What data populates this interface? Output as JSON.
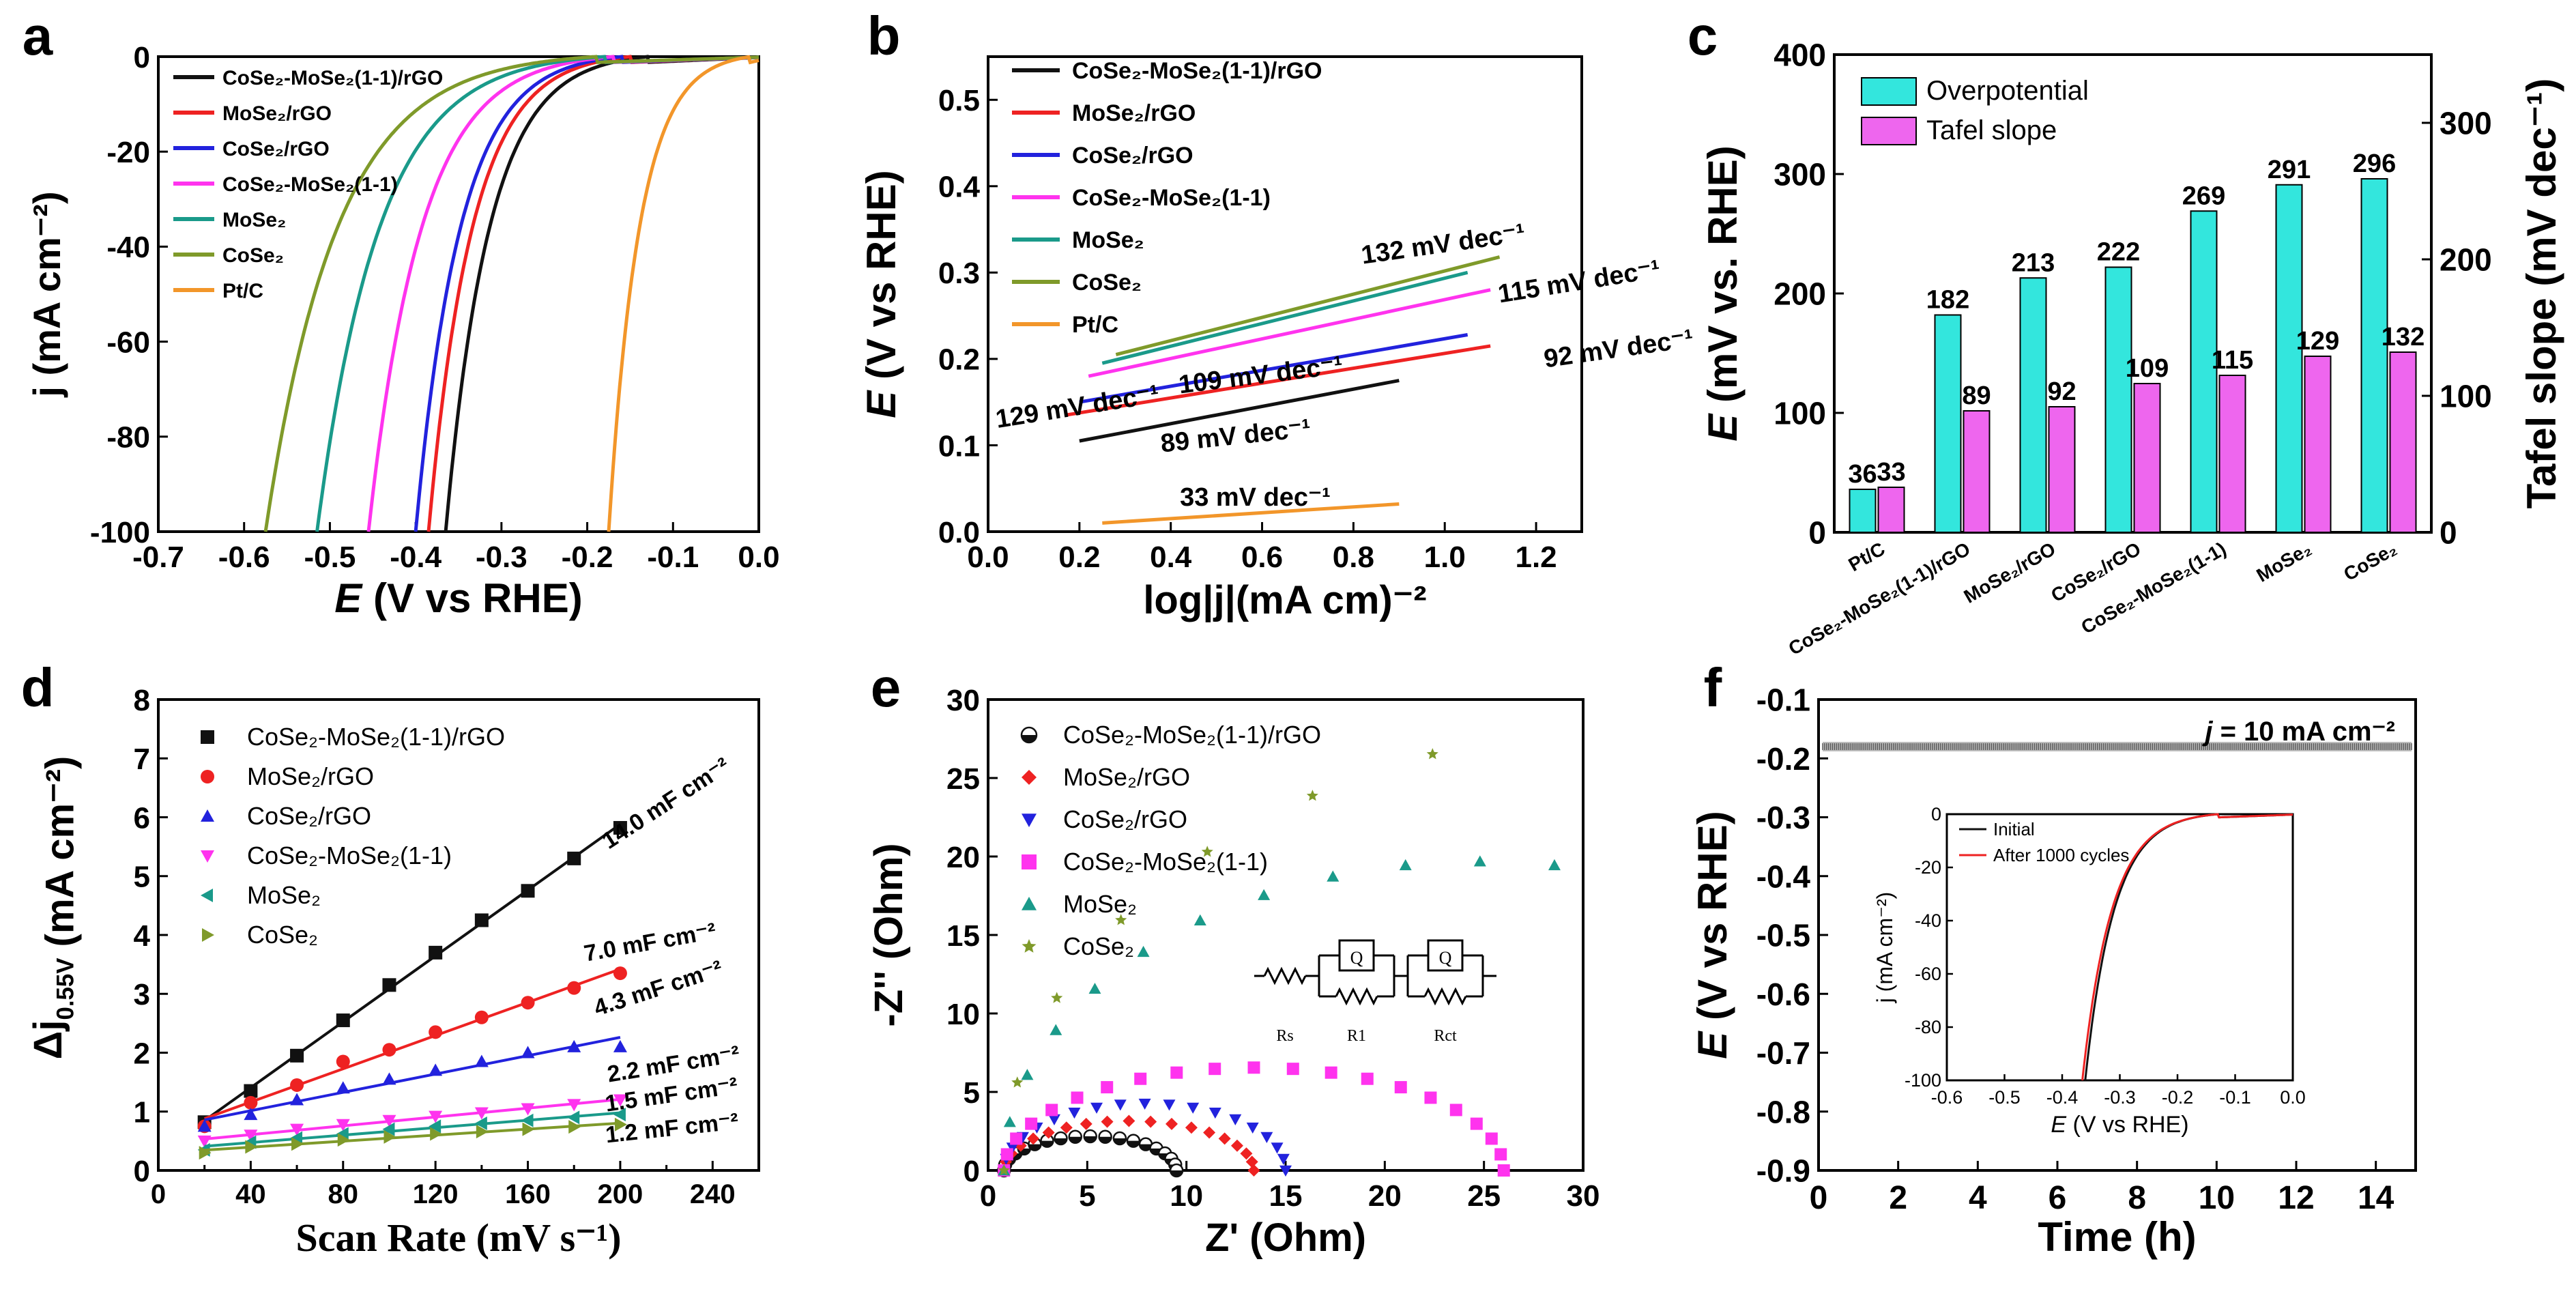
{
  "panels": {
    "a": {
      "letter": "a"
    },
    "b": {
      "letter": "b"
    },
    "c": {
      "letter": "c"
    },
    "d": {
      "letter": "d"
    },
    "e": {
      "letter": "e"
    },
    "f": {
      "letter": "f"
    }
  },
  "colors": {
    "black": "#111111",
    "red": "#ee2222",
    "blue": "#2222dd",
    "magenta": "#ff33ee",
    "teal": "#1a9a8a",
    "olive": "#7f9a2a",
    "orange": "#f2962a",
    "cyan_bar": "#33e6dd",
    "pink_bar": "#ee66ee"
  },
  "chart_data": [
    {
      "id": "a",
      "type": "line",
      "title": "",
      "xlabel_i": "E",
      "xlabel_rest": " (V vs RHE)",
      "ylabel": "j (mA cm⁻²)",
      "xlim": [
        -0.7,
        0.0
      ],
      "ylim": [
        -100,
        0
      ],
      "xticks": [
        "-0.7",
        "-0.6",
        "-0.5",
        "-0.4",
        "-0.3",
        "-0.2",
        "-0.1",
        "0.0"
      ],
      "yticks": [
        "0",
        "-20",
        "-40",
        "-60",
        "-80",
        "-100"
      ],
      "legend": [
        "CoSe₂-MoSe₂(1-1)/rGO",
        "MoSe₂/rGO",
        "CoSe₂/rGO",
        "CoSe₂-MoSe₂(1-1)",
        "MoSe₂",
        "CoSe₂",
        "Pt/C"
      ],
      "series": [
        {
          "name": "CoSe₂-MoSe₂(1-1)/rGO",
          "color": "black",
          "onset": -0.13,
          "e100": -0.365
        },
        {
          "name": "MoSe₂/rGO",
          "color": "red",
          "onset": -0.15,
          "e100": -0.385
        },
        {
          "name": "CoSe₂/rGO",
          "color": "blue",
          "onset": -0.16,
          "e100": -0.4
        },
        {
          "name": "CoSe₂-MoSe₂(1-1)",
          "color": "magenta",
          "onset": -0.17,
          "e100": -0.455
        },
        {
          "name": "MoSe₂",
          "color": "teal",
          "onset": -0.18,
          "e100": -0.515
        },
        {
          "name": "CoSe₂",
          "color": "olive",
          "onset": -0.19,
          "e100": -0.575
        },
        {
          "name": "Pt/C",
          "color": "orange",
          "onset": -0.01,
          "e100": -0.175
        }
      ]
    },
    {
      "id": "b",
      "type": "line",
      "xlabel": "log|j|(mA cm)⁻²",
      "ylabel_i": "E",
      "ylabel_rest": " (V vs RHE)",
      "xlim": [
        0.0,
        1.3
      ],
      "ylim": [
        0.0,
        0.55
      ],
      "xticks": [
        "0.0",
        "0.2",
        "0.4",
        "0.6",
        "0.8",
        "1.0",
        "1.2"
      ],
      "yticks": [
        "0.0",
        "0.1",
        "0.2",
        "0.3",
        "0.4",
        "0.5"
      ],
      "legend": [
        "CoSe₂-MoSe₂(1-1)/rGO",
        "MoSe₂/rGO",
        "CoSe₂/rGO",
        "CoSe₂-MoSe₂(1-1)",
        "MoSe₂",
        "CoSe₂",
        "Pt/C"
      ],
      "series": [
        {
          "name": "CoSe₂-MoSe₂(1-1)/rGO",
          "color": "black",
          "x": [
            0.2,
            0.9
          ],
          "y": [
            0.105,
            0.175
          ],
          "label": "89 mV dec⁻¹"
        },
        {
          "name": "MoSe₂/rGO",
          "color": "red",
          "x": [
            0.17,
            1.1
          ],
          "y": [
            0.135,
            0.215
          ],
          "label": "92 mV dec⁻¹"
        },
        {
          "name": "CoSe₂/rGO",
          "color": "blue",
          "x": [
            0.2,
            1.05
          ],
          "y": [
            0.15,
            0.228
          ],
          "label": "109 mV dec⁻¹"
        },
        {
          "name": "CoSe₂-MoSe₂(1-1)",
          "color": "magenta",
          "x": [
            0.22,
            1.1
          ],
          "y": [
            0.18,
            0.28
          ],
          "label": "115 mV dec⁻¹"
        },
        {
          "name": "MoSe₂",
          "color": "teal",
          "x": [
            0.25,
            1.05
          ],
          "y": [
            0.195,
            0.3
          ],
          "label": "129 mV dec⁻¹"
        },
        {
          "name": "CoSe₂",
          "color": "olive",
          "x": [
            0.28,
            1.12
          ],
          "y": [
            0.205,
            0.318
          ],
          "label": "132 mV dec⁻¹"
        },
        {
          "name": "Pt/C",
          "color": "orange",
          "x": [
            0.25,
            0.9
          ],
          "y": [
            0.01,
            0.032
          ],
          "label": "33 mV dec⁻¹"
        }
      ]
    },
    {
      "id": "c",
      "type": "bar",
      "ylabel_i": "E",
      "ylabel_rest": " (mV vs. RHE)",
      "y2label": "Tafel slope (mV dec⁻¹)",
      "ylim": [
        0,
        400
      ],
      "y2lim": [
        0,
        350
      ],
      "yticks": [
        "0",
        "100",
        "200",
        "300",
        "400"
      ],
      "y2ticks": [
        "0",
        "100",
        "200",
        "300"
      ],
      "categories": [
        "Pt/C",
        "CoSe₂-MoSe₂(1-1)/rGO",
        "MoSe₂/rGO",
        "CoSe₂/rGO",
        "CoSe₂-MoSe₂(1-1)",
        "MoSe₂",
        "CoSe₂"
      ],
      "series": [
        {
          "name": "Overpotential",
          "values": [
            36,
            182,
            213,
            222,
            269,
            291,
            296
          ]
        },
        {
          "name": "Tafel slope",
          "values": [
            33,
            89,
            92,
            109,
            115,
            129,
            132
          ]
        }
      ]
    },
    {
      "id": "d",
      "type": "scatter",
      "xlabel": "Scan Rate (mV s⁻¹)",
      "ylabel": "Δj",
      "ylabel_sub": "0.55V",
      "ylabel_unit": " (mA cm⁻²)",
      "xlim": [
        0,
        260
      ],
      "ylim": [
        0,
        8
      ],
      "xticks": [
        "0",
        "20",
        "40",
        "60",
        "80",
        "100",
        "120",
        "140",
        "160",
        "180",
        "200",
        "220",
        "240"
      ],
      "yticks": [
        "0",
        "1",
        "2",
        "3",
        "4",
        "5",
        "6",
        "7",
        "8"
      ],
      "x": [
        20,
        40,
        60,
        80,
        100,
        120,
        140,
        160,
        180,
        200
      ],
      "legend": [
        "CoSe₂-MoSe₂(1-1)/rGO",
        "MoSe₂/rGO",
        "CoSe₂/rGO",
        "CoSe₂-MoSe₂(1-1)",
        "MoSe₂",
        "CoSe₂"
      ],
      "series": [
        {
          "name": "CoSe₂-MoSe₂(1-1)/rGO",
          "color": "black",
          "marker": "square",
          "y": [
            0.82,
            1.35,
            1.95,
            2.55,
            3.15,
            3.7,
            4.25,
            4.75,
            5.3,
            5.82
          ],
          "label": "14.0 mF cm⁻²"
        },
        {
          "name": "MoSe₂/rGO",
          "color": "red",
          "marker": "circle",
          "y": [
            0.75,
            1.15,
            1.45,
            1.85,
            2.05,
            2.35,
            2.6,
            2.85,
            3.1,
            3.35
          ],
          "label": "7.0 mF cm⁻²"
        },
        {
          "name": "CoSe₂/rGO",
          "color": "blue",
          "marker": "triangle",
          "y": [
            0.75,
            0.95,
            1.2,
            1.4,
            1.55,
            1.7,
            1.85,
            2.0,
            2.1,
            2.1
          ],
          "label": "4.3 mF cm⁻²"
        },
        {
          "name": "CoSe₂-MoSe₂(1-1)",
          "color": "magenta",
          "marker": "triangle-down",
          "y": [
            0.5,
            0.6,
            0.7,
            0.78,
            0.85,
            0.92,
            0.98,
            1.05,
            1.12,
            1.2
          ],
          "label": "2.2 mF cm⁻²"
        },
        {
          "name": "MoSe₂",
          "color": "teal",
          "marker": "triangle-left",
          "y": [
            0.35,
            0.48,
            0.55,
            0.62,
            0.7,
            0.75,
            0.8,
            0.85,
            0.9,
            0.95
          ],
          "label": "1.5 mF cm⁻²"
        },
        {
          "name": "CoSe₂",
          "color": "olive",
          "marker": "triangle-right",
          "y": [
            0.3,
            0.4,
            0.45,
            0.52,
            0.57,
            0.62,
            0.66,
            0.7,
            0.74,
            0.78
          ],
          "label": "1.2 mF cm⁻²"
        }
      ]
    },
    {
      "id": "e",
      "type": "scatter",
      "xlabel": "Z' (Ohm)",
      "ylabel": "-Z'' (Ohm)",
      "xlim": [
        0,
        30
      ],
      "ylim": [
        0,
        30
      ],
      "xticks": [
        "0",
        "5",
        "10",
        "15",
        "20",
        "25",
        "30"
      ],
      "yticks": [
        "0",
        "5",
        "10",
        "15",
        "20",
        "25",
        "30"
      ],
      "legend": [
        "CoSe₂-MoSe₂(1-1)/rGO",
        "MoSe₂/rGO",
        "CoSe₂/rGO",
        "CoSe₂-MoSe₂(1-1)",
        "MoSe₂",
        "CoSe₂"
      ],
      "series": [
        {
          "name": "CoSe₂-MoSe₂(1-1)/rGO",
          "color": "black",
          "marker": "halfcircle",
          "rs": 0.8,
          "rct": 8.7,
          "depress": 0.5,
          "n": 18
        },
        {
          "name": "MoSe₂/rGO",
          "color": "red",
          "marker": "diamond",
          "rs": 0.8,
          "rct": 12.6,
          "depress": 0.5,
          "n": 18
        },
        {
          "name": "CoSe₂/rGO",
          "color": "blue",
          "marker": "triangle-down",
          "rs": 0.8,
          "rct": 14.2,
          "depress": 0.6,
          "n": 18
        },
        {
          "name": "CoSe₂-MoSe₂(1-1)",
          "color": "magenta",
          "marker": "square",
          "rs": 0.8,
          "rct": 25.2,
          "depress": 0.52,
          "n": 20
        },
        {
          "name": "MoSe₂",
          "color": "teal",
          "marker": "triangle",
          "rs": 0.8,
          "rct": 48,
          "depress": 0.82,
          "n": 20,
          "xmax": 30.5
        },
        {
          "name": "CoSe₂",
          "color": "olive",
          "marker": "star",
          "rs": 0.8,
          "rct": 70,
          "depress": 0.82,
          "n": 16,
          "xmax": 25
        }
      ],
      "circuit": {
        "rs": "Rs",
        "r1": "R1",
        "rct": "Rct",
        "q": "Q"
      }
    },
    {
      "id": "f",
      "type": "line",
      "xlabel": "Time (h)",
      "ylabel_i": "E",
      "ylabel_rest": " (V vs RHE)",
      "xlim": [
        0,
        15
      ],
      "ylim": [
        -0.9,
        -0.1
      ],
      "xticks": [
        "0",
        "2",
        "4",
        "6",
        "8",
        "10",
        "12",
        "14"
      ],
      "yticks": [
        "-0.1",
        "-0.2",
        "-0.3",
        "-0.4",
        "-0.5",
        "-0.6",
        "-0.7",
        "-0.8",
        "-0.9"
      ],
      "annotation_i": "j",
      "annotation_rest": " = 10 mA cm⁻²",
      "series": [
        {
          "name": "chronopotentiometry",
          "color": "black",
          "y_level": -0.18
        }
      ],
      "inset": {
        "xlabel_i": "E",
        "xlabel_rest": " (V vs RHE)",
        "ylabel": "j (mA cm⁻²)",
        "xlim": [
          -0.6,
          0.0
        ],
        "ylim": [
          -100,
          0
        ],
        "xticks": [
          "-0.6",
          "-0.5",
          "-0.4",
          "-0.3",
          "-0.2",
          "-0.1",
          "0.0"
        ],
        "yticks": [
          "0",
          "-20",
          "-40",
          "-60",
          "-80",
          "-100"
        ],
        "legend": [
          "Initial",
          "After 1000 cycles"
        ],
        "series": [
          {
            "name": "Initial",
            "color": "black",
            "onset": -0.13,
            "e100": -0.36
          },
          {
            "name": "After 1000 cycles",
            "color": "red",
            "onset": -0.13,
            "e100": -0.365
          }
        ]
      }
    }
  ]
}
